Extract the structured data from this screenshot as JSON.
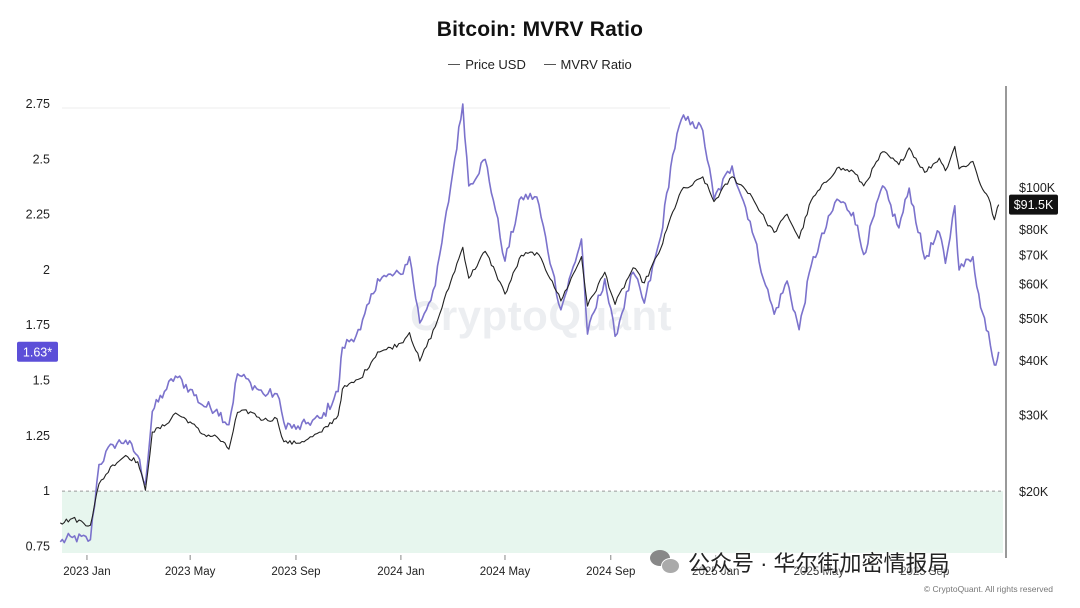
{
  "chart_data": {
    "type": "line",
    "title": "Bitcoin: MVRV Ratio",
    "legend": [
      "Price USD",
      "MVRV Ratio"
    ],
    "legend_placement": "top-center",
    "x_ticks": [
      "2023 Jan",
      "2023 May",
      "2023 Sep",
      "2024 Jan",
      "2024 May",
      "2024 Sep",
      "2025 Jan",
      "2025 May",
      "2025 Sep"
    ],
    "x_range": [
      "2022-12",
      "2025-12"
    ],
    "left_axis": {
      "ticks": [
        "0.75",
        "1",
        "1.25",
        "1.5",
        "1.75",
        "2",
        "2.25",
        "2.5",
        "2.75"
      ],
      "range": [
        0.72,
        2.85
      ],
      "current_label": "1.63*",
      "reference_line": 1
    },
    "right_axis": {
      "scale": "log",
      "ticks": [
        "$20K",
        "$30K",
        "$40K",
        "$50K",
        "$60K",
        "$70K",
        "$80K",
        "$100K"
      ],
      "current_label": "$91.5K"
    },
    "grid": false,
    "series": [
      {
        "name": "Price USD",
        "axis": "right",
        "color": "#222222",
        "points": [
          [
            "2022-12-01",
            17000
          ],
          [
            "2022-12-15",
            17400
          ],
          [
            "2023-01-05",
            16800
          ],
          [
            "2023-01-15",
            20900
          ],
          [
            "2023-01-31",
            23100
          ],
          [
            "2023-02-15",
            24300
          ],
          [
            "2023-03-01",
            23500
          ],
          [
            "2023-03-10",
            20200
          ],
          [
            "2023-03-18",
            27500
          ],
          [
            "2023-04-01",
            28400
          ],
          [
            "2023-04-14",
            30400
          ],
          [
            "2023-05-01",
            29000
          ],
          [
            "2023-05-15",
            27200
          ],
          [
            "2023-06-01",
            26800
          ],
          [
            "2023-06-15",
            25100
          ],
          [
            "2023-06-25",
            30500
          ],
          [
            "2023-07-10",
            30600
          ],
          [
            "2023-07-25",
            29300
          ],
          [
            "2023-08-10",
            29500
          ],
          [
            "2023-08-18",
            26100
          ],
          [
            "2023-09-01",
            25900
          ],
          [
            "2023-09-15",
            26500
          ],
          [
            "2023-10-01",
            27500
          ],
          [
            "2023-10-20",
            30000
          ],
          [
            "2023-10-25",
            34500
          ],
          [
            "2023-11-15",
            36500
          ],
          [
            "2023-12-05",
            42000
          ],
          [
            "2023-12-15",
            42500
          ],
          [
            "2024-01-01",
            44000
          ],
          [
            "2024-01-11",
            46500
          ],
          [
            "2024-01-23",
            40000
          ],
          [
            "2024-02-10",
            48000
          ],
          [
            "2024-02-28",
            61000
          ],
          [
            "2024-03-13",
            73000
          ],
          [
            "2024-03-20",
            62000
          ],
          [
            "2024-04-08",
            71500
          ],
          [
            "2024-04-20",
            64000
          ],
          [
            "2024-05-01",
            57000
          ],
          [
            "2024-05-20",
            70000
          ],
          [
            "2024-06-07",
            71000
          ],
          [
            "2024-06-25",
            61000
          ],
          [
            "2024-07-05",
            55000
          ],
          [
            "2024-07-29",
            69500
          ],
          [
            "2024-08-05",
            53500
          ],
          [
            "2024-08-25",
            64000
          ],
          [
            "2024-09-06",
            54000
          ],
          [
            "2024-09-27",
            65500
          ],
          [
            "2024-10-10",
            60500
          ],
          [
            "2024-10-29",
            72500
          ],
          [
            "2024-11-12",
            88000
          ],
          [
            "2024-11-22",
            98500
          ],
          [
            "2024-12-05",
            101500
          ],
          [
            "2024-12-17",
            106000
          ],
          [
            "2024-12-30",
            93000
          ],
          [
            "2025-01-20",
            106000
          ],
          [
            "2025-02-10",
            97000
          ],
          [
            "2025-02-28",
            84000
          ],
          [
            "2025-03-10",
            79000
          ],
          [
            "2025-03-25",
            87000
          ],
          [
            "2025-04-08",
            76500
          ],
          [
            "2025-04-22",
            93500
          ],
          [
            "2025-05-22",
            111000
          ],
          [
            "2025-06-10",
            109000
          ],
          [
            "2025-06-22",
            101000
          ],
          [
            "2025-07-14",
            121000
          ],
          [
            "2025-08-02",
            113000
          ],
          [
            "2025-08-14",
            123500
          ],
          [
            "2025-09-01",
            108500
          ],
          [
            "2025-09-18",
            117000
          ],
          [
            "2025-09-25",
            109500
          ],
          [
            "2025-10-06",
            124500
          ],
          [
            "2025-10-11",
            110500
          ],
          [
            "2025-10-27",
            115000
          ],
          [
            "2025-11-05",
            101500
          ],
          [
            "2025-11-14",
            95000
          ],
          [
            "2025-11-21",
            84500
          ],
          [
            "2025-11-26",
            91500
          ]
        ]
      },
      {
        "name": "MVRV Ratio",
        "axis": "left",
        "color": "#7b72cc",
        "points": [
          [
            "2022-12-01",
            0.77
          ],
          [
            "2022-12-15",
            0.79
          ],
          [
            "2023-01-05",
            0.78
          ],
          [
            "2023-01-15",
            1.12
          ],
          [
            "2023-01-31",
            1.21
          ],
          [
            "2023-02-15",
            1.23
          ],
          [
            "2023-03-01",
            1.16
          ],
          [
            "2023-03-10",
            1.03
          ],
          [
            "2023-03-18",
            1.36
          ],
          [
            "2023-04-01",
            1.45
          ],
          [
            "2023-04-14",
            1.52
          ],
          [
            "2023-05-01",
            1.46
          ],
          [
            "2023-05-15",
            1.39
          ],
          [
            "2023-06-01",
            1.37
          ],
          [
            "2023-06-15",
            1.3
          ],
          [
            "2023-06-25",
            1.53
          ],
          [
            "2023-07-10",
            1.49
          ],
          [
            "2023-07-25",
            1.44
          ],
          [
            "2023-08-10",
            1.44
          ],
          [
            "2023-08-18",
            1.31
          ],
          [
            "2023-09-01",
            1.28
          ],
          [
            "2023-09-15",
            1.31
          ],
          [
            "2023-10-01",
            1.33
          ],
          [
            "2023-10-20",
            1.45
          ],
          [
            "2023-10-25",
            1.65
          ],
          [
            "2023-11-15",
            1.73
          ],
          [
            "2023-12-05",
            1.96
          ],
          [
            "2023-12-15",
            1.97
          ],
          [
            "2024-01-01",
            1.98
          ],
          [
            "2024-01-11",
            2.06
          ],
          [
            "2024-01-23",
            1.76
          ],
          [
            "2024-02-10",
            1.93
          ],
          [
            "2024-02-28",
            2.38
          ],
          [
            "2024-03-13",
            2.75
          ],
          [
            "2024-03-20",
            2.38
          ],
          [
            "2024-04-08",
            2.5
          ],
          [
            "2024-04-20",
            2.27
          ],
          [
            "2024-05-01",
            2.04
          ],
          [
            "2024-05-20",
            2.33
          ],
          [
            "2024-06-07",
            2.33
          ],
          [
            "2024-06-25",
            2.0
          ],
          [
            "2024-07-05",
            1.82
          ],
          [
            "2024-07-29",
            2.14
          ],
          [
            "2024-08-05",
            1.71
          ],
          [
            "2024-08-25",
            1.96
          ],
          [
            "2024-09-06",
            1.7
          ],
          [
            "2024-09-27",
            1.99
          ],
          [
            "2024-10-10",
            1.85
          ],
          [
            "2024-10-29",
            2.15
          ],
          [
            "2024-11-12",
            2.52
          ],
          [
            "2024-11-22",
            2.68
          ],
          [
            "2024-12-05",
            2.67
          ],
          [
            "2024-12-17",
            2.63
          ],
          [
            "2024-12-30",
            2.32
          ],
          [
            "2025-01-20",
            2.47
          ],
          [
            "2025-02-10",
            2.22
          ],
          [
            "2025-02-28",
            1.93
          ],
          [
            "2025-03-10",
            1.8
          ],
          [
            "2025-03-25",
            1.95
          ],
          [
            "2025-04-08",
            1.73
          ],
          [
            "2025-04-22",
            2.02
          ],
          [
            "2025-05-22",
            2.32
          ],
          [
            "2025-06-10",
            2.26
          ],
          [
            "2025-06-22",
            2.07
          ],
          [
            "2025-07-14",
            2.38
          ],
          [
            "2025-08-02",
            2.19
          ],
          [
            "2025-08-14",
            2.37
          ],
          [
            "2025-09-01",
            2.05
          ],
          [
            "2025-09-18",
            2.17
          ],
          [
            "2025-09-25",
            2.03
          ],
          [
            "2025-10-06",
            2.29
          ],
          [
            "2025-10-11",
            2.0
          ],
          [
            "2025-10-27",
            2.06
          ],
          [
            "2025-11-05",
            1.83
          ],
          [
            "2025-11-14",
            1.72
          ],
          [
            "2025-11-21",
            1.57
          ],
          [
            "2025-11-26",
            1.63
          ]
        ]
      }
    ]
  },
  "watermark": "CryptoQuant",
  "copyright": "© CryptoQuant. All rights reserved",
  "wechat_caption": "公众号 · 华尔街加密情报局"
}
